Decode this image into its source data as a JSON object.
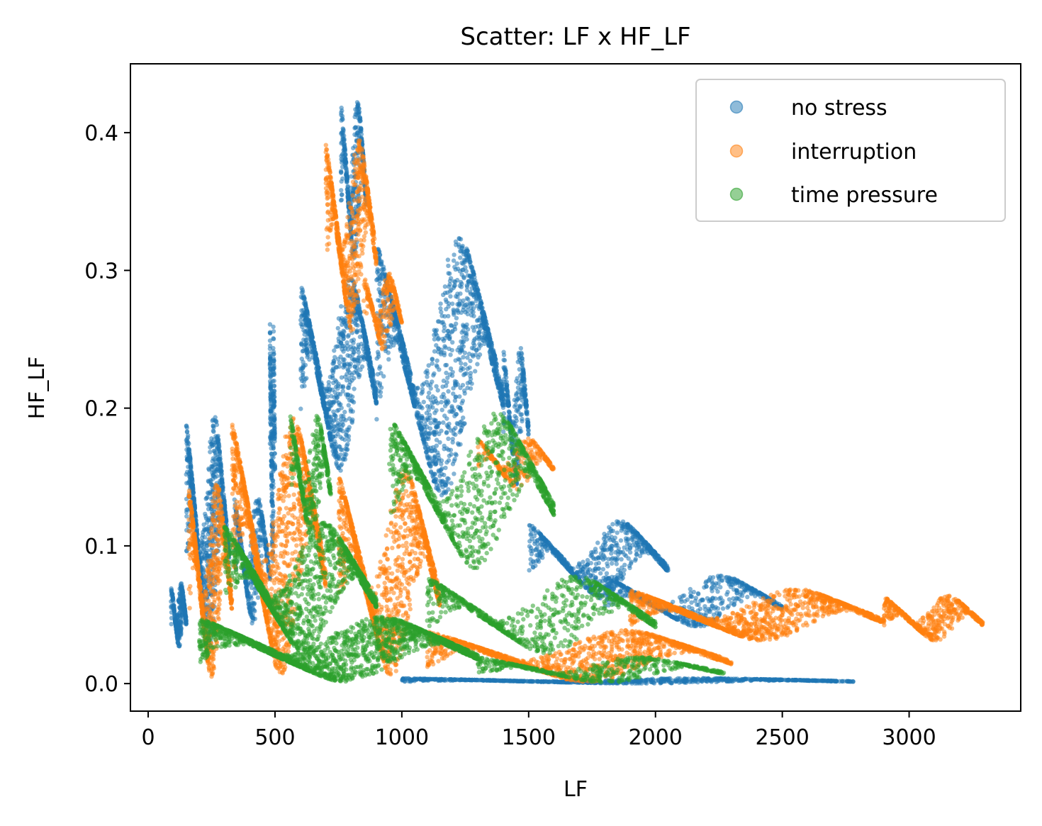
{
  "chart_data": {
    "type": "scatter",
    "title": "Scatter: LF x HF_LF",
    "xlabel": "LF",
    "ylabel": "HF_LF",
    "xlim": [
      -70,
      3440
    ],
    "ylim": [
      -0.02,
      0.45
    ],
    "xticks": [
      0,
      500,
      1000,
      1500,
      2000,
      2500,
      3000
    ],
    "yticks": [
      0.0,
      0.1,
      0.2,
      0.3,
      0.4
    ],
    "xtick_labels": [
      "0",
      "500",
      "1000",
      "1500",
      "2000",
      "2500",
      "3000"
    ],
    "ytick_labels": [
      "0.0",
      "0.1",
      "0.2",
      "0.3",
      "0.4"
    ],
    "grid": false,
    "legend_position": "top-right",
    "series": [
      {
        "name": "no stress",
        "color": "#1f77b4",
        "regions": [
          {
            "x": [
              90,
              150
            ],
            "y": [
              0.025,
              0.075
            ],
            "n": 300
          },
          {
            "x": [
              150,
              320
            ],
            "y": [
              0.02,
              0.2
            ],
            "n": 900
          },
          {
            "x": [
              480,
              500
            ],
            "y": [
              0.08,
              0.275
            ],
            "n": 250
          },
          {
            "x": [
              340,
              480
            ],
            "y": [
              0.04,
              0.14
            ],
            "n": 400
          },
          {
            "x": [
              600,
              900
            ],
            "y": [
              0.15,
              0.3
            ],
            "n": 1000
          },
          {
            "x": [
              760,
              860
            ],
            "y": [
              0.3,
              0.43
            ],
            "n": 400
          },
          {
            "x": [
              900,
              1400
            ],
            "y": [
              0.13,
              0.33
            ],
            "n": 1400
          },
          {
            "x": [
              1400,
              1500
            ],
            "y": [
              0.14,
              0.25
            ],
            "n": 300
          },
          {
            "x": [
              1500,
              2050
            ],
            "y": [
              0.06,
              0.12
            ],
            "n": 700
          },
          {
            "x": [
              1800,
              2500
            ],
            "y": [
              0.04,
              0.08
            ],
            "n": 600
          },
          {
            "x": [
              1000,
              2780
            ],
            "y": [
              0.0,
              0.004
            ],
            "n": 800
          }
        ]
      },
      {
        "name": "interruption",
        "color": "#ff7f0e",
        "regions": [
          {
            "x": [
              160,
              330
            ],
            "y": [
              0.0,
              0.15
            ],
            "n": 700
          },
          {
            "x": [
              330,
              700
            ],
            "y": [
              0.0,
              0.2
            ],
            "n": 1400
          },
          {
            "x": [
              700,
              900
            ],
            "y": [
              0.25,
              0.4
            ],
            "n": 700
          },
          {
            "x": [
              850,
              1000
            ],
            "y": [
              0.24,
              0.3
            ],
            "n": 250
          },
          {
            "x": [
              750,
              1150
            ],
            "y": [
              0.0,
              0.16
            ],
            "n": 1200
          },
          {
            "x": [
              1300,
              1600
            ],
            "y": [
              0.14,
              0.18
            ],
            "n": 300
          },
          {
            "x": [
              1100,
              2300
            ],
            "y": [
              0.0,
              0.04
            ],
            "n": 1200
          },
          {
            "x": [
              1900,
              2900
            ],
            "y": [
              0.03,
              0.07
            ],
            "n": 1200
          },
          {
            "x": [
              2900,
              3290
            ],
            "y": [
              0.03,
              0.065
            ],
            "n": 500
          }
        ]
      },
      {
        "name": "time pressure",
        "color": "#2ca02c",
        "regions": [
          {
            "x": [
              200,
              1300
            ],
            "y": [
              0.0,
              0.05
            ],
            "n": 1800
          },
          {
            "x": [
              300,
              900
            ],
            "y": [
              0.02,
              0.12
            ],
            "n": 1300
          },
          {
            "x": [
              560,
              720
            ],
            "y": [
              0.1,
              0.2
            ],
            "n": 400
          },
          {
            "x": [
              950,
              1600
            ],
            "y": [
              0.08,
              0.2
            ],
            "n": 1000
          },
          {
            "x": [
              1100,
              2000
            ],
            "y": [
              0.02,
              0.08
            ],
            "n": 800
          },
          {
            "x": [
              1300,
              2270
            ],
            "y": [
              0.0,
              0.02
            ],
            "n": 500
          }
        ]
      }
    ]
  }
}
